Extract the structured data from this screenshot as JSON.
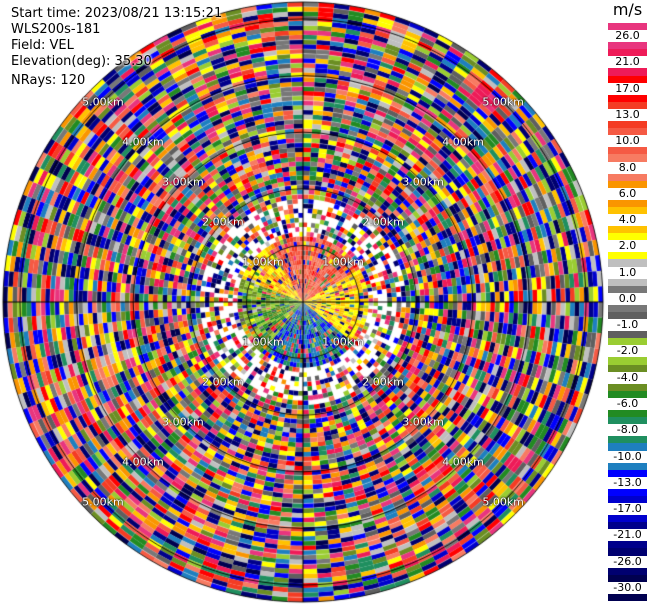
{
  "header": {
    "start_time": "Start time: 2023/08/21 13:15:21",
    "site": "WLS200s-181",
    "field": "Field: VEL",
    "elevation": "Elevation(deg): 35.30",
    "nrays": "NRays: 120"
  },
  "colorbar": {
    "unit": "m/s",
    "bands": [
      {
        "label": "26.0",
        "color": "#e8357e"
      },
      {
        "label": "21.0",
        "color": "#ee1b58"
      },
      {
        "label": "17.0",
        "color": "#ff0000"
      },
      {
        "label": "13.0",
        "color": "#f43c24"
      },
      {
        "label": "10.0",
        "color": "#f55a44"
      },
      {
        "label": "8.0",
        "color": "#f77b62"
      },
      {
        "label": "6.0",
        "color": "#fa9500"
      },
      {
        "label": "4.0",
        "color": "#ffc200"
      },
      {
        "label": "2.0",
        "color": "#ffff00"
      },
      {
        "label": "1.0",
        "color": "#bfbfbf"
      },
      {
        "label": "0.0",
        "color": "#787878"
      },
      {
        "label": "-1.0",
        "color": "#5f5f5f"
      },
      {
        "label": "-2.0",
        "color": "#9acd32"
      },
      {
        "label": "-4.0",
        "color": "#6b8e23"
      },
      {
        "label": "-6.0",
        "color": "#228b22"
      },
      {
        "label": "-8.0",
        "color": "#1f8f5f"
      },
      {
        "label": "-10.0",
        "color": "#1e7fbf"
      },
      {
        "label": "-13.0",
        "color": "#0000ff"
      },
      {
        "label": "-17.0",
        "color": "#0000cd"
      },
      {
        "label": "-21.0",
        "color": "#00008b"
      },
      {
        "label": "-26.0",
        "color": "#000070"
      },
      {
        "label": "-30.0",
        "color": "#000050"
      }
    ]
  },
  "range_rings": [
    {
      "range_km": 1,
      "label": "1.00km"
    },
    {
      "range_km": 2,
      "label": "2.00km"
    },
    {
      "range_km": 3,
      "label": "3.00km"
    },
    {
      "range_km": 4,
      "label": "4.00km"
    },
    {
      "range_km": 5,
      "label": "5.00km"
    }
  ],
  "chart_data": {
    "type": "heatmap",
    "projection": "polar PPI",
    "field": "VEL",
    "unit": "m/s",
    "nrays": 120,
    "max_range_km": 5.3,
    "color_levels": [
      26.0,
      21.0,
      17.0,
      13.0,
      10.0,
      8.0,
      6.0,
      4.0,
      2.0,
      1.0,
      0.0,
      -1.0,
      -2.0,
      -4.0,
      -6.0,
      -8.0,
      -10.0,
      -13.0,
      -17.0,
      -21.0,
      -26.0,
      -30.0
    ],
    "near_field": {
      "north_sector": "positive 4.0 to 10.0",
      "east_sector": "positive 2.0 to 4.0",
      "south_sector": "negative -8.0 to -13.0",
      "west_sector": "negative -2.0 to -6.0"
    },
    "far_field": "noisy, full value range"
  }
}
